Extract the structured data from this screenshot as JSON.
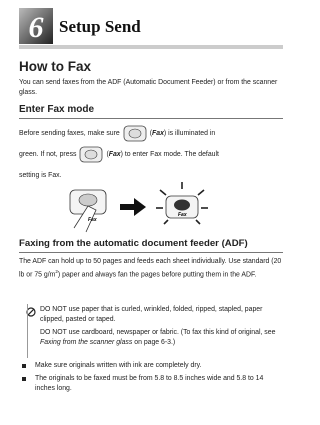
{
  "chapter": {
    "number": "6",
    "title": "Setup Send"
  },
  "section": {
    "title": "How to Fax",
    "intro": "You can send faxes from the ADF (Automatic Document Feeder) or from the scanner glass."
  },
  "fax_mode": {
    "title": "Enter Fax mode",
    "segments": [
      "Before sending faxes, make sure",
      "(",
      "Fax",
      ") is illuminated in",
      "green. If not, press",
      "(",
      "Fax",
      ") to enter Fax mode. The default",
      "setting is Fax."
    ],
    "button_label": "Fax"
  },
  "adf": {
    "title": "Faxing from the automatic document feeder (ADF)",
    "segments": [
      "The ADF can hold up to 50 pages and feeds each sheet individually. Use standard (20 lb or 75 g/m",
      "2",
      ") paper and always fan the pages before putting them in the ADF."
    ],
    "note": {
      "line1": "DO NOT use paper that is curled, wrinkled, folded, ripped, stapled, paper clipped, pasted or taped.",
      "line2": "DO NOT use cardboard, newspaper or fabric. (To fax this kind of original, see",
      "link": "Faxing from the scanner glass",
      "line2_end": "on page 6-3.)"
    },
    "bullets": [
      "Make sure originals written with ink are completely dry.",
      "The originals to be faxed must be from 5.8 to 8.5 inches wide and 5.8 to 14 inches long."
    ]
  }
}
